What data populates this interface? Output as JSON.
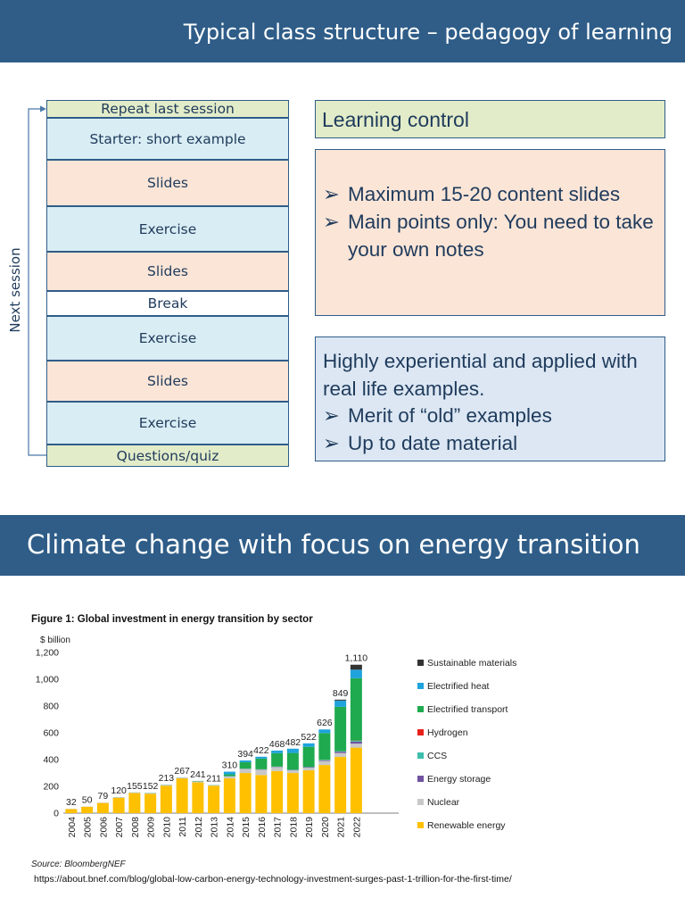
{
  "section1": {
    "title": "Typical class structure – pedagogy of learning",
    "side_label": "Next session",
    "blocks": [
      "Repeat last session",
      "Starter:  short example",
      "Slides",
      "Exercise",
      "Slides",
      "Break",
      "Exercise",
      "Slides",
      "Exercise",
      "Questions/quiz"
    ],
    "learning_control": {
      "heading": "Learning control",
      "bullets": [
        "Maximum 15-20 content slides",
        "Main points only: You need to take your own notes"
      ]
    },
    "experiential": {
      "line1": "Highly experiential and applied with real life examples.",
      "bullets": [
        "Merit of “old” examples",
        "Up to date material"
      ]
    },
    "bullet_symbol": "➢"
  },
  "section2": {
    "title": "Climate change with focus on energy transition",
    "figure_title": "Figure 1: Global investment in energy transition by sector",
    "source": "Source: BloombergNEF",
    "url": "https://about.bnef.com/blog/global-low-carbon-energy-technology-investment-surges-past-1-trillion-for-the-first-time/"
  },
  "chart_data": {
    "type": "bar",
    "stacked": true,
    "title": "Figure 1: Global investment in energy transition by sector",
    "ylabel": "$ billion",
    "ylim": [
      0,
      1200
    ],
    "yticks": [
      "0",
      "200",
      "400",
      "600",
      "800",
      "1,000",
      "1,200"
    ],
    "categories": [
      "2004",
      "2005",
      "2006",
      "2007",
      "2008",
      "2009",
      "2010",
      "2011",
      "2012",
      "2013",
      "2014",
      "2015",
      "2016",
      "2017",
      "2018",
      "2019",
      "2020",
      "2021",
      "2022"
    ],
    "totals": [
      32,
      50,
      79,
      120,
      155,
      152,
      213,
      267,
      241,
      211,
      310,
      394,
      422,
      468,
      482,
      522,
      626,
      849,
      1110
    ],
    "total_labels": [
      "32",
      "50",
      "79",
      "120",
      "155",
      "152",
      "213",
      "267",
      "241",
      "211",
      "310",
      "394",
      "422",
      "468",
      "482",
      "522",
      "626",
      "849",
      "1,110"
    ],
    "legend_position": "right",
    "grid": false,
    "series": [
      {
        "name": "Renewable energy",
        "color": "#ffc000",
        "values": [
          30,
          48,
          76,
          115,
          150,
          145,
          205,
          260,
          230,
          205,
          260,
          300,
          285,
          315,
          300,
          320,
          360,
          420,
          490
        ]
      },
      {
        "name": "Nuclear",
        "color": "#c8c8c8",
        "values": [
          2,
          2,
          3,
          4,
          4,
          5,
          6,
          6,
          7,
          4,
          15,
          30,
          40,
          30,
          20,
          20,
          30,
          30,
          30
        ]
      },
      {
        "name": "Energy storage",
        "color": "#7053a0",
        "values": [
          0,
          0,
          0,
          0,
          0,
          0,
          0,
          0,
          0,
          0,
          1,
          2,
          2,
          2,
          3,
          4,
          5,
          10,
          15
        ]
      },
      {
        "name": "CCS",
        "color": "#3cbfad",
        "values": [
          0,
          0,
          0,
          0,
          0,
          1,
          1,
          1,
          1,
          1,
          1,
          1,
          1,
          1,
          2,
          2,
          3,
          4,
          6
        ]
      },
      {
        "name": "Hydrogen",
        "color": "#e8211b",
        "values": [
          0,
          0,
          0,
          0,
          0,
          0,
          0,
          0,
          0,
          0,
          0,
          0,
          0,
          0,
          0,
          0,
          1,
          1,
          2
        ]
      },
      {
        "name": "Electrified transport",
        "color": "#1faa4f",
        "values": [
          0,
          0,
          0,
          1,
          1,
          1,
          1,
          0,
          3,
          1,
          13,
          48,
          80,
          100,
          125,
          150,
          200,
          330,
          466
        ]
      },
      {
        "name": "Electrified heat",
        "color": "#1fa3dc",
        "values": [
          0,
          0,
          0,
          0,
          0,
          0,
          0,
          0,
          0,
          0,
          20,
          13,
          14,
          20,
          32,
          26,
          27,
          47,
          64
        ]
      },
      {
        "name": "Sustainable materials",
        "color": "#333333",
        "values": [
          0,
          0,
          0,
          0,
          0,
          0,
          0,
          0,
          0,
          0,
          0,
          0,
          0,
          0,
          0,
          0,
          0,
          7,
          37
        ]
      }
    ],
    "legend_order": [
      "Sustainable materials",
      "Electrified heat",
      "Electrified transport",
      "Hydrogen",
      "CCS",
      "Energy storage",
      "Nuclear",
      "Renewable energy"
    ]
  }
}
